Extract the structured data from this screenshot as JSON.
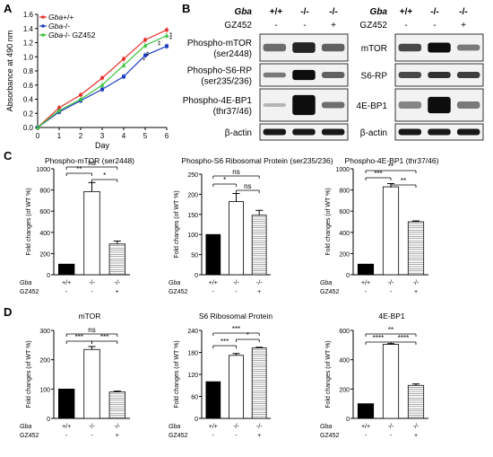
{
  "panels": {
    "A": {
      "letter": "A",
      "chart_data": {
        "type": "line",
        "xlabel": "Day",
        "ylabel": "Absorbance at 490 nm",
        "xlim": [
          0,
          6
        ],
        "ylim": [
          0.0,
          1.6
        ],
        "xticks": [
          "0",
          "1",
          "2",
          "3",
          "4",
          "5",
          "6"
        ],
        "yticks": [
          "0.0",
          "0.2",
          "0.4",
          "0.6",
          "0.8",
          "1.0",
          "1.2",
          "1.4",
          "1.6"
        ],
        "x": [
          0,
          1,
          2,
          3,
          4,
          5,
          6
        ],
        "series": [
          {
            "name": "Gba+/+",
            "color": "#e8302a",
            "values": [
              0.0,
              0.28,
              0.46,
              0.7,
              0.97,
              1.24,
              1.38
            ]
          },
          {
            "name": "Gba-/-",
            "color": "#1f3fbf",
            "values": [
              0.0,
              0.22,
              0.38,
              0.54,
              0.72,
              1.02,
              1.15
            ]
          },
          {
            "name": "Gba-/- GZ452",
            "color": "#3cc23c",
            "values": [
              0.0,
              0.24,
              0.4,
              0.6,
              0.88,
              1.16,
              1.3
            ]
          }
        ],
        "legend": [
          {
            "prefix": "Gba",
            "suffix": "+/+",
            "plain": ""
          },
          {
            "prefix": "Gba",
            "suffix": "-/-",
            "plain": ""
          },
          {
            "prefix": "Gba",
            "suffix": "-/-",
            "plain": " GZ452"
          }
        ],
        "annotations": [
          "*",
          "**",
          "**",
          "***"
        ]
      }
    },
    "B": {
      "letter": "B",
      "header": {
        "gba": "Gba",
        "gz": "GZ452",
        "genotypes": [
          "+/+",
          "-/-",
          "-/-"
        ],
        "treat": [
          "-",
          "-",
          "+"
        ]
      },
      "left_rows": [
        {
          "label": [
            "Phospho-mTOR",
            "(ser2448)"
          ]
        },
        {
          "label": [
            "Phospho-S6-RP",
            "(ser235/236)"
          ]
        },
        {
          "label": [
            "Phospho-4E-BP1",
            "(thr37/46)"
          ]
        },
        {
          "label": [
            "β-actin"
          ]
        }
      ],
      "right_rows": [
        {
          "label": [
            "mTOR"
          ]
        },
        {
          "label": [
            "S6-RP"
          ]
        },
        {
          "label": [
            "4E-BP1"
          ]
        },
        {
          "label": [
            "β-actin"
          ]
        }
      ]
    },
    "C": {
      "letter": "C",
      "charts": [
        {
          "type": "bar",
          "title": "Phospho-mTOR (ser2448)",
          "ylabel": "Fold changes (of WT %)",
          "ylim": [
            0,
            1000
          ],
          "yticks": [
            "0",
            "200",
            "400",
            "600",
            "800",
            "1000"
          ],
          "categories": [
            "+/+",
            "-/-",
            "-/-"
          ],
          "treatment": [
            "-",
            "-",
            "+"
          ],
          "values": [
            100,
            785,
            290
          ],
          "errors": [
            0,
            85,
            28
          ],
          "sig": [
            {
              "text": "**"
            },
            {
              "text": "*"
            },
            {
              "text": "ns"
            }
          ]
        },
        {
          "type": "bar",
          "title": "Phospho-S6 Ribosomal  Protein (ser235/236)",
          "ylabel": "Fold changes (of WT %)",
          "ylim": [
            0,
            250
          ],
          "yticks": [
            "0",
            "50",
            "100",
            "150",
            "200",
            "250"
          ],
          "categories": [
            "+/+",
            "-/-",
            "-/-"
          ],
          "treatment": [
            "-",
            "-",
            "+"
          ],
          "values": [
            100,
            182,
            148
          ],
          "errors": [
            0,
            20,
            12
          ],
          "sig": [
            {
              "text": "*"
            },
            {
              "text": "ns"
            },
            {
              "text": "ns"
            }
          ]
        },
        {
          "type": "bar",
          "title": "Phospho-4E-BP1 (thr37/46)",
          "ylabel": "Fold changes (of WT %)",
          "ylim": [
            0,
            1000
          ],
          "yticks": [
            "0",
            "200",
            "400",
            "600",
            "800",
            "1000"
          ],
          "categories": [
            "+/+",
            "-/-",
            "-/-"
          ],
          "treatment": [
            "-",
            "-",
            "+"
          ],
          "values": [
            100,
            830,
            500
          ],
          "errors": [
            0,
            30,
            8
          ],
          "sig": [
            {
              "text": "***"
            },
            {
              "text": "**"
            },
            {
              "text": "**"
            }
          ]
        }
      ]
    },
    "D": {
      "letter": "D",
      "charts": [
        {
          "type": "bar",
          "title": "mTOR",
          "ylabel": "Fold changes (of WT %)",
          "ylim": [
            0,
            300
          ],
          "yticks": [
            "0",
            "100",
            "200",
            "300"
          ],
          "categories": [
            "+/+",
            "-/-",
            "-/-"
          ],
          "treatment": [
            "-",
            "-",
            "+"
          ],
          "values": [
            100,
            235,
            90
          ],
          "errors": [
            0,
            10,
            3
          ],
          "sig": [
            {
              "text": "***"
            },
            {
              "text": "***"
            },
            {
              "text": "ns"
            }
          ]
        },
        {
          "type": "bar",
          "title": "S6 Ribosomal Protein",
          "ylabel": "Fold changes (of WT %)",
          "ylim": [
            0,
            240
          ],
          "yticks": [
            "0",
            "60",
            "120",
            "180",
            "240"
          ],
          "categories": [
            "+/+",
            "-/-",
            "-/-"
          ],
          "treatment": [
            "-",
            "-",
            "+"
          ],
          "values": [
            100,
            172,
            192
          ],
          "errors": [
            0,
            5,
            2
          ],
          "sig": [
            {
              "text": "***"
            },
            {
              "text": "*"
            },
            {
              "text": "***"
            }
          ]
        },
        {
          "type": "bar",
          "title": "4E-BP1",
          "ylabel": "Fold changes (of WT %)",
          "ylim": [
            0,
            600
          ],
          "yticks": [
            "0",
            "200",
            "400",
            "600"
          ],
          "categories": [
            "+/+",
            "-/-",
            "-/-"
          ],
          "treatment": [
            "-",
            "-",
            "+"
          ],
          "values": [
            100,
            505,
            225
          ],
          "errors": [
            0,
            5,
            10
          ],
          "sig": [
            {
              "text": "****"
            },
            {
              "text": "****"
            },
            {
              "text": "**"
            }
          ]
        }
      ]
    },
    "row_labels": {
      "gba": "Gba",
      "gz": "GZ452"
    }
  }
}
